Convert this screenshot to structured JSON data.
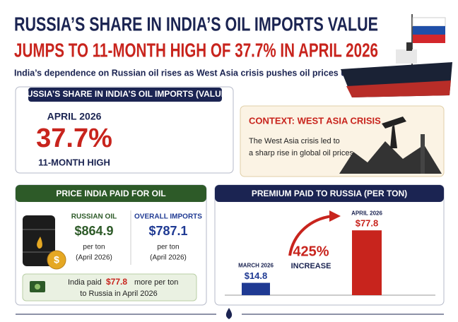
{
  "header": {
    "title_line1": "RUSSIA’S SHARE IN INDIA’S OIL IMPORTS VALUE",
    "title_line2": "JUMPS TO 11-MONTH HIGH OF 37.7% IN APRIL 2026",
    "subtitle": "India’s dependence on Russian oil rises as West Asia crisis pushes oil prices up"
  },
  "share": {
    "heading": "RUSSIA’S SHARE IN INDIA’S OIL IMPORTS (VALUE)",
    "period": "APRIL 2026",
    "value": "37.7%",
    "note": "11-MONTH HIGH"
  },
  "context": {
    "heading": "CONTEXT: WEST ASIA CRISIS",
    "line1": "The West Asia crisis led to",
    "line2": "a sharp rise in global oil prices."
  },
  "price": {
    "heading": "PRICE INDIA PAID FOR OIL",
    "columns": [
      {
        "label": "RUSSIAN OIL",
        "value": "$864.9",
        "unit": "per ton",
        "period": "(April 2026)"
      },
      {
        "label": "OVERALL IMPORTS",
        "value": "$787.1",
        "unit": "per ton",
        "period": "(April 2026)"
      }
    ],
    "note": {
      "before": "India paid",
      "amount": "$77.8",
      "after": "more per ton",
      "line2": "to Russia in April 2026"
    }
  },
  "premium": {
    "heading": "PREMIUM PAID TO RUSSIA (PER TON)",
    "categories": [
      "MARCH 2026",
      "APRIL 2026"
    ],
    "values": [
      14.8,
      77.8
    ],
    "value_labels": [
      "$14.8",
      "$77.8"
    ],
    "increase": "425%",
    "increase_label": "INCREASE"
  }
}
